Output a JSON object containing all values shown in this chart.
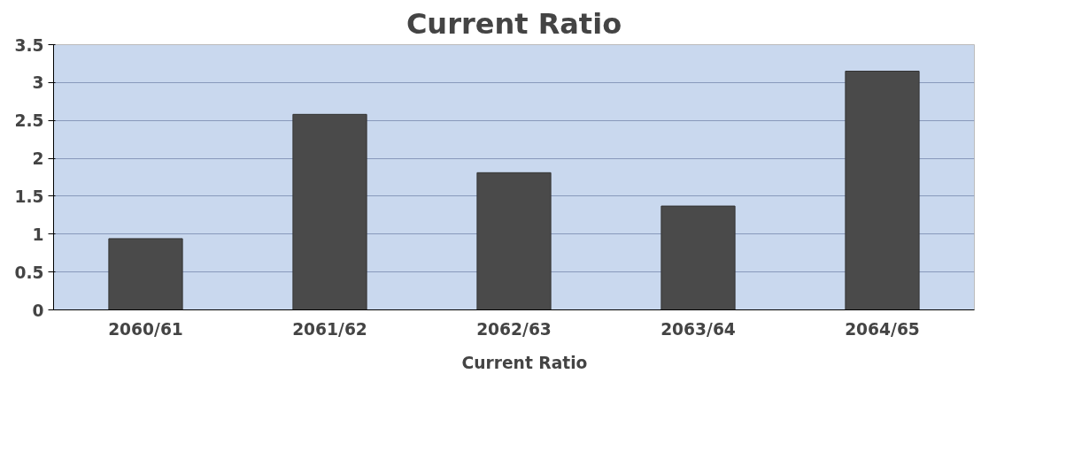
{
  "chart_data": {
    "type": "bar",
    "title": "Current Ratio",
    "categories": [
      "2060/61",
      "2061/62",
      "2062/63",
      "2063/64",
      "2064/65"
    ],
    "series": [
      {
        "name": "Current Ratio",
        "color": "#4a4a4a",
        "values": [
          0.94,
          2.58,
          1.81,
          1.37,
          3.15
        ]
      }
    ],
    "ylim": [
      0,
      3.5
    ],
    "yticks": [
      0,
      0.5,
      1,
      1.5,
      2,
      2.5,
      3,
      3.5
    ],
    "grid": "y",
    "legend": "bottom"
  }
}
